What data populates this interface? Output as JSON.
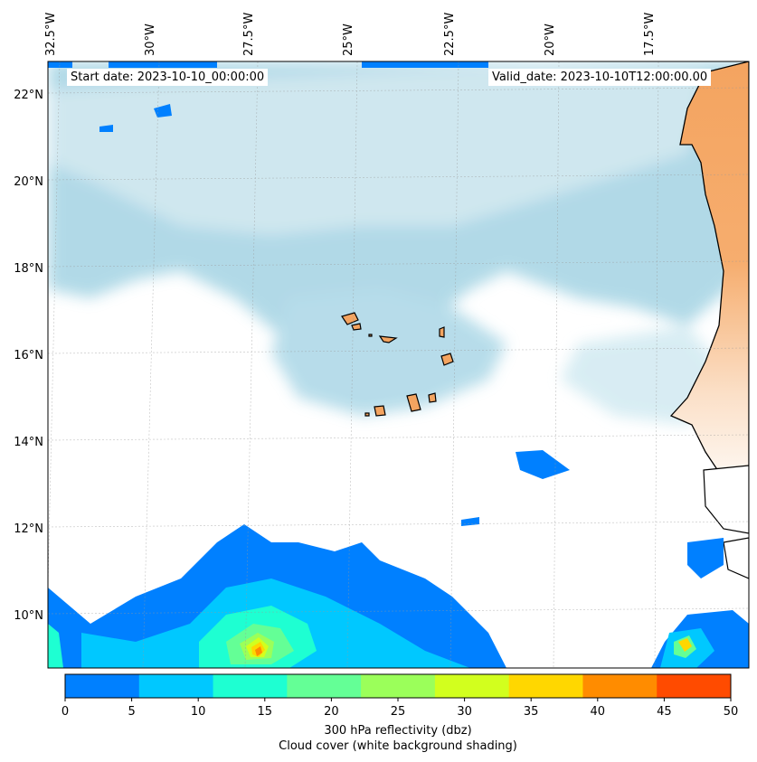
{
  "map": {
    "start_date": "Start date: 2023-10-10_00:00:00",
    "valid_date": "Valid_date: 2023-10-10T12:00:00.00",
    "lon_ticks": [
      "32.5°W",
      "30°W",
      "27.5°W",
      "25°W",
      "22.5°W",
      "20°W",
      "17.5°W"
    ],
    "lat_ticks": [
      "22°N",
      "20°N",
      "18°N",
      "16°N",
      "14°N",
      "12°N",
      "10°N"
    ],
    "colors": {
      "ocean_cloud": "#add8e6",
      "land": "#f4a460",
      "coast": "#000000"
    }
  },
  "colorbar": {
    "ticks": [
      "0",
      "5",
      "10",
      "15",
      "20",
      "25",
      "30",
      "35",
      "40",
      "45",
      "50"
    ],
    "colors": [
      "#0080ff",
      "#00c8ff",
      "#1effd2",
      "#64ff96",
      "#9bff5a",
      "#d2ff1e",
      "#ffd700",
      "#ff8c00",
      "#ff4b00",
      "#ff4b00"
    ],
    "label_line1": "300 hPa reflectivity (dbz)",
    "label_line2": "Cloud cover (white background shading)"
  }
}
